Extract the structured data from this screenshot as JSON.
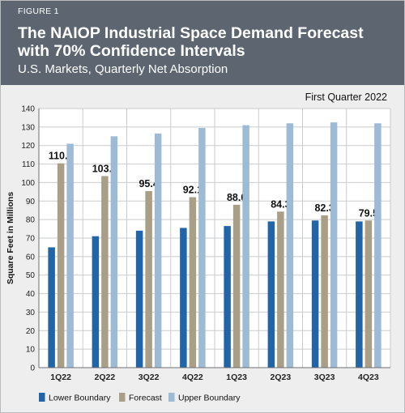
{
  "header": {
    "figure_label": "FIGURE 1",
    "title": "The NAIOP Industrial Space Demand Forecast with 70% Confidence Intervals",
    "subtitle": "U.S. Markets, Quarterly Net Absorption"
  },
  "chart_data": {
    "type": "bar",
    "date_label": "First Quarter 2022",
    "ylabel": "Square Feet in Millions",
    "ylim": [
      0,
      140
    ],
    "yticks": [
      0,
      10,
      20,
      30,
      40,
      50,
      60,
      70,
      80,
      90,
      100,
      110,
      120,
      130,
      140
    ],
    "grid": true,
    "legend_position": "bottom",
    "categories": [
      "1Q22",
      "2Q22",
      "3Q22",
      "4Q22",
      "1Q23",
      "2Q23",
      "3Q23",
      "4Q23"
    ],
    "series": [
      {
        "name": "Lower Boundary",
        "color": "#2165a8",
        "values": [
          65,
          71,
          74,
          75.5,
          76.5,
          79,
          79.5,
          79
        ]
      },
      {
        "name": "Forecast",
        "color": "#a89f86",
        "values": [
          110.4,
          103.5,
          95.4,
          92.1,
          88.0,
          84.3,
          82.3,
          79.5
        ]
      },
      {
        "name": "Upper Boundary",
        "color": "#9ebbd6",
        "values": [
          121,
          125,
          126.5,
          129.5,
          131,
          132,
          132.5,
          132
        ]
      }
    ],
    "data_labels": [
      "110.4",
      "103.5",
      "95.4",
      "92.1",
      "88.0",
      "84.3",
      "82.3",
      "79.5"
    ]
  }
}
